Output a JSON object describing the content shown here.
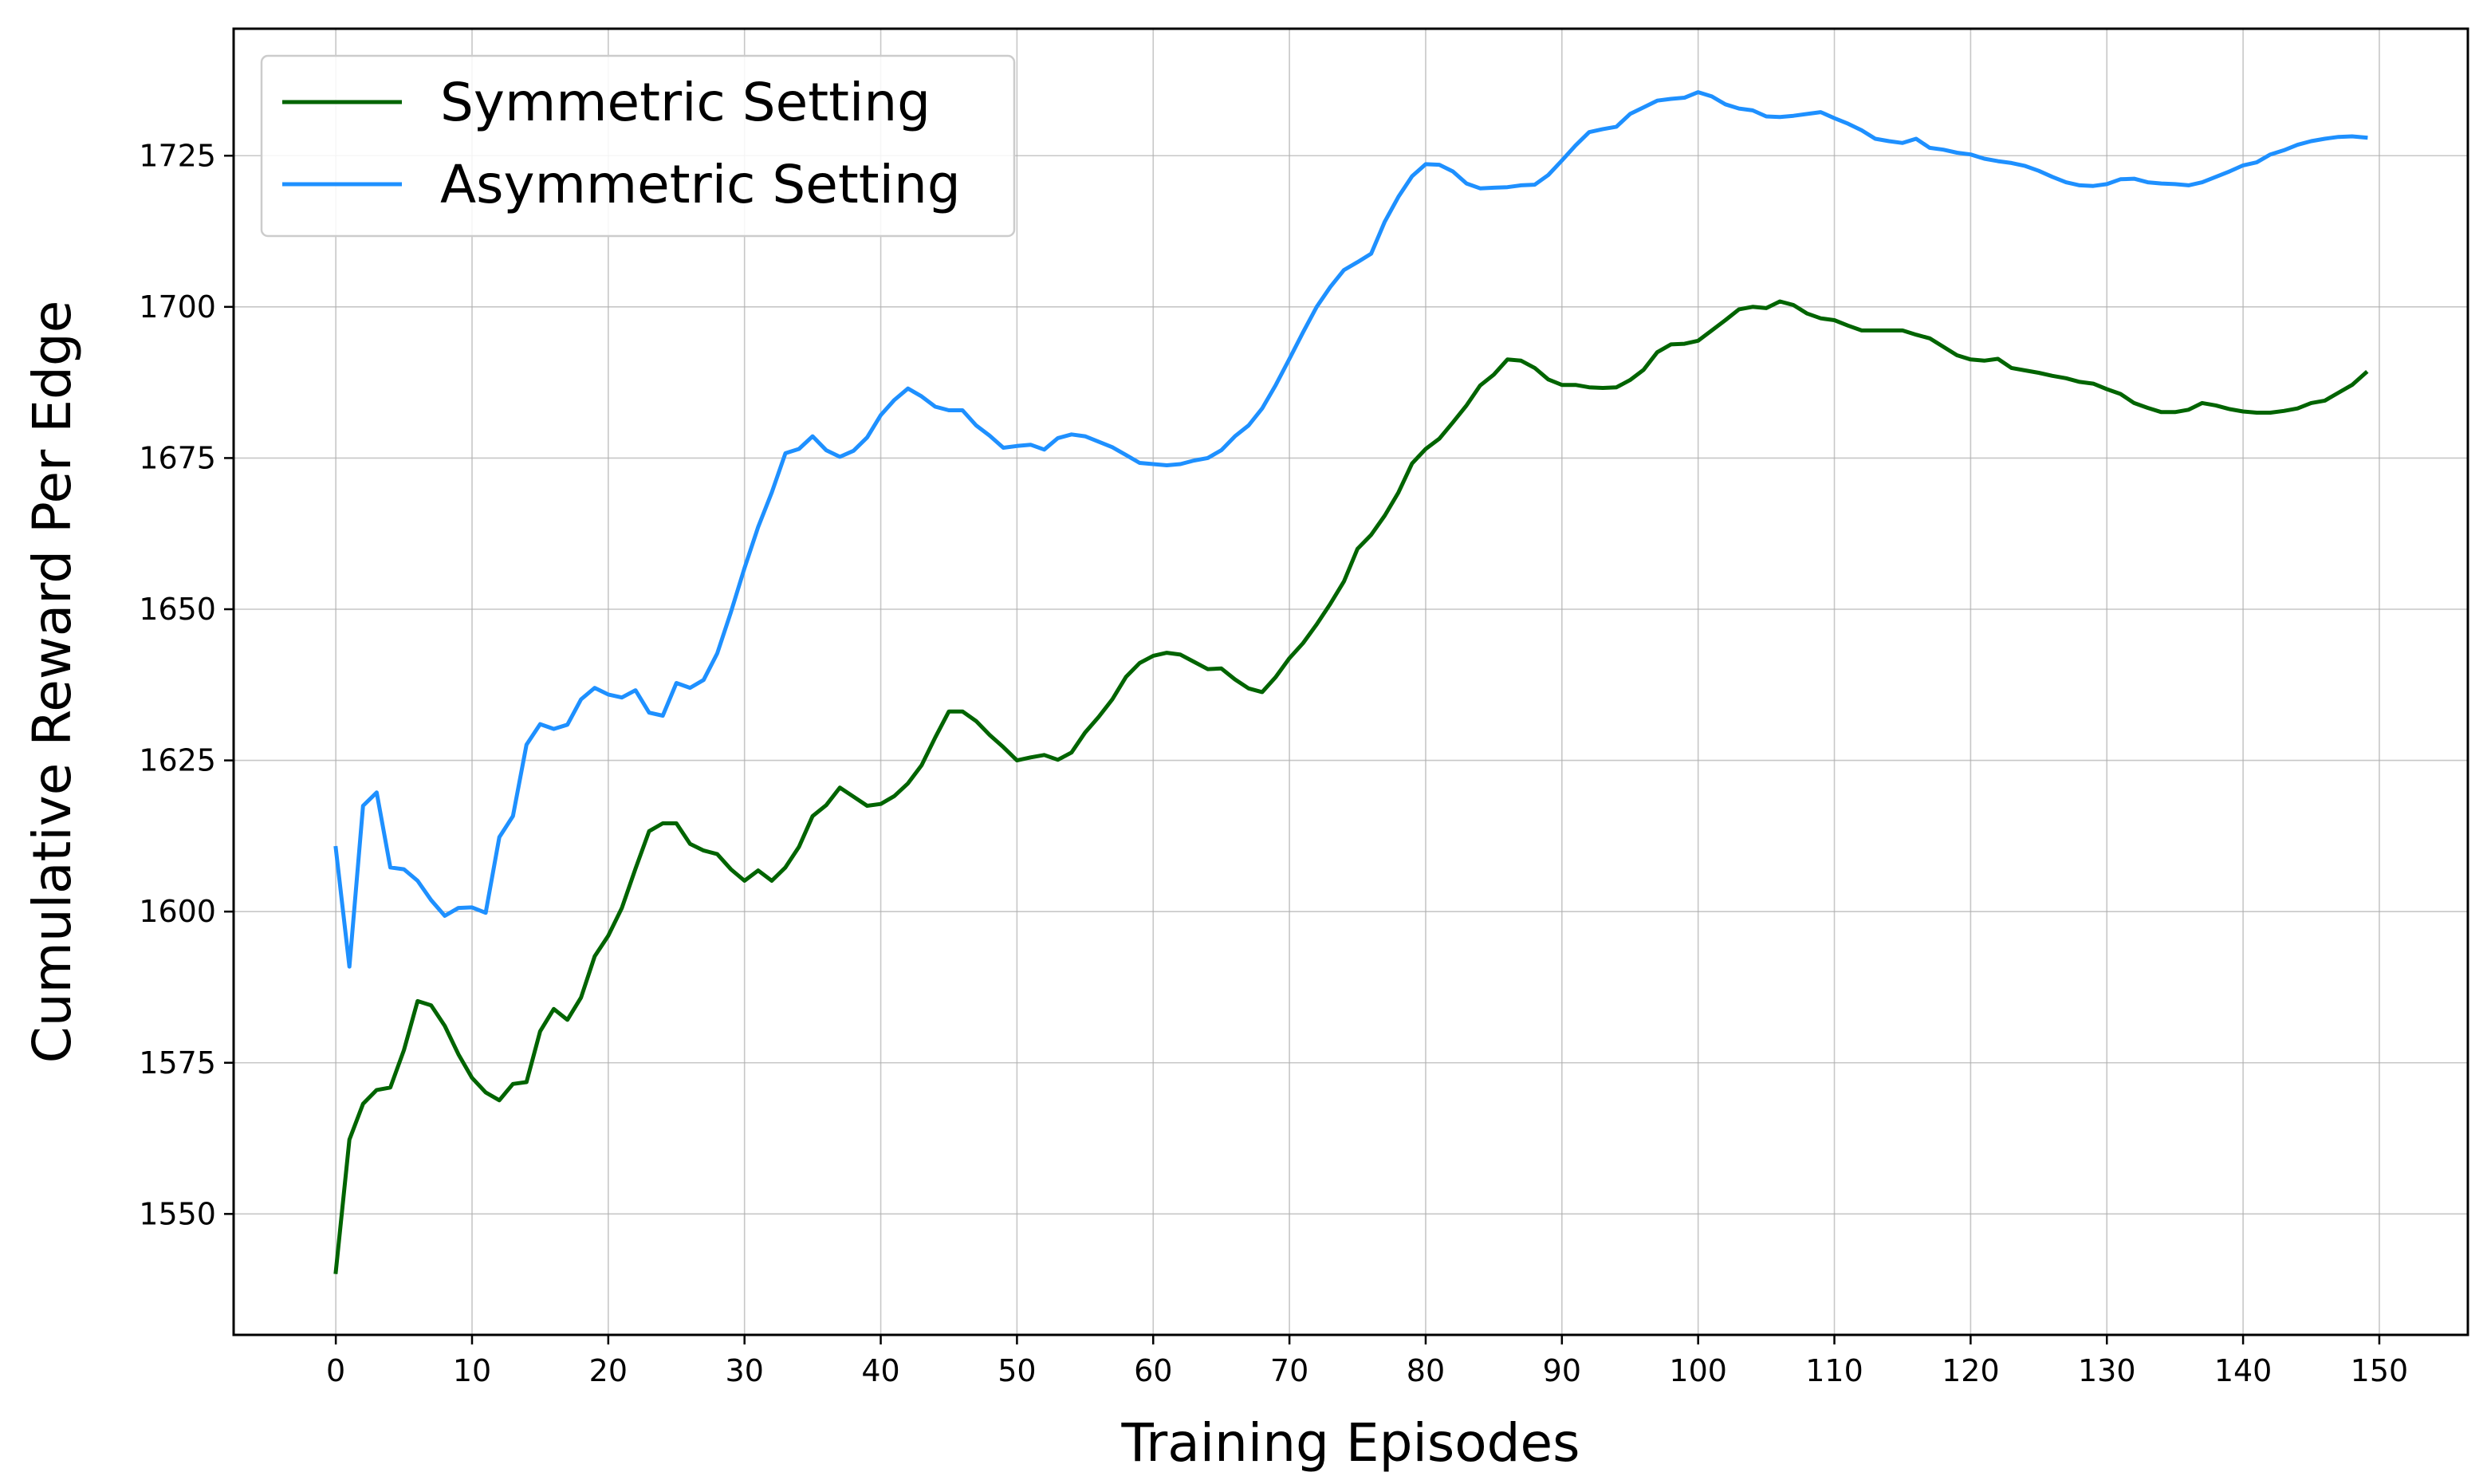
{
  "chart_data": {
    "type": "line",
    "xlabel": "Training Episodes",
    "ylabel": "Cumulative Reward Per Edge",
    "xlim": [
      -7.5,
      156.5
    ],
    "ylim": [
      1530,
      1746
    ],
    "x_ticks": [
      0,
      10,
      20,
      30,
      40,
      50,
      60,
      70,
      80,
      90,
      100,
      110,
      120,
      130,
      140,
      150
    ],
    "y_ticks": [
      1550,
      1575,
      1600,
      1625,
      1650,
      1675,
      1700,
      1725
    ],
    "grid": true,
    "legend_position": "top-left",
    "x": [
      0,
      1,
      2,
      3,
      4,
      5,
      6,
      7,
      8,
      9,
      10,
      11,
      12,
      13,
      14,
      15,
      16,
      17,
      18,
      19,
      20,
      21,
      22,
      23,
      24,
      25,
      26,
      27,
      28,
      29,
      30,
      31,
      32,
      33,
      34,
      35,
      36,
      37,
      38,
      39,
      40,
      41,
      42,
      43,
      44,
      45,
      46,
      47,
      48,
      49,
      50,
      51,
      52,
      53,
      54,
      55,
      56,
      57,
      58,
      59,
      60,
      61,
      62,
      63,
      64,
      65,
      66,
      67,
      68,
      69,
      70,
      71,
      72,
      73,
      74,
      75,
      76,
      77,
      78,
      79,
      80,
      81,
      82,
      83,
      84,
      85,
      86,
      87,
      88,
      89,
      90,
      91,
      92,
      93,
      94,
      95,
      96,
      97,
      98,
      99,
      100,
      101,
      102,
      103,
      104,
      105,
      106,
      107,
      108,
      109,
      110,
      111,
      112,
      113,
      114,
      115,
      116,
      117,
      118,
      119,
      120,
      121,
      122,
      123,
      124,
      125,
      126,
      127,
      128,
      129,
      130,
      131,
      132,
      133,
      134,
      135,
      136,
      137,
      138,
      139,
      140,
      141,
      142,
      143,
      144,
      145,
      146,
      147,
      148,
      149
    ],
    "series": [
      {
        "name": "Symmetric Setting",
        "color": "#006400",
        "values": [
          1540.4,
          1562.3,
          1568.2,
          1570.5,
          1570.9,
          1577.1,
          1585.2,
          1584.5,
          1581.1,
          1576.4,
          1572.5,
          1570.1,
          1568.8,
          1571.5,
          1571.8,
          1580.2,
          1583.9,
          1582.1,
          1585.8,
          1592.6,
          1596.0,
          1600.6,
          1607.1,
          1613.3,
          1614.6,
          1614.6,
          1611.2,
          1610.1,
          1609.5,
          1607.0,
          1605.1,
          1606.8,
          1605.1,
          1607.3,
          1610.7,
          1615.8,
          1617.6,
          1620.5,
          1619.0,
          1617.5,
          1617.8,
          1619.1,
          1621.2,
          1624.2,
          1628.8,
          1633.1,
          1633.1,
          1631.5,
          1629.2,
          1627.2,
          1625.0,
          1625.5,
          1625.9,
          1625.1,
          1626.3,
          1629.6,
          1632.2,
          1635.1,
          1638.8,
          1641.1,
          1642.3,
          1642.8,
          1642.5,
          1641.3,
          1640.1,
          1640.2,
          1638.4,
          1636.9,
          1636.3,
          1638.8,
          1641.9,
          1644.4,
          1647.5,
          1650.9,
          1654.6,
          1660.0,
          1662.3,
          1665.5,
          1669.3,
          1674.1,
          1676.5,
          1678.2,
          1680.9,
          1683.7,
          1687.0,
          1688.8,
          1691.3,
          1691.1,
          1689.9,
          1688.0,
          1687.1,
          1687.1,
          1686.7,
          1686.6,
          1686.7,
          1687.9,
          1689.6,
          1692.5,
          1693.8,
          1693.9,
          1694.4,
          1696.1,
          1697.8,
          1699.6,
          1700.0,
          1699.8,
          1700.9,
          1700.3,
          1698.9,
          1698.1,
          1697.8,
          1696.9,
          1696.1,
          1696.1,
          1696.1,
          1696.1,
          1695.4,
          1694.8,
          1693.4,
          1692.0,
          1691.3,
          1691.1,
          1691.4,
          1689.9,
          1689.5,
          1689.1,
          1688.6,
          1688.2,
          1687.6,
          1687.3,
          1686.4,
          1685.6,
          1684.1,
          1683.3,
          1682.6,
          1682.6,
          1683.0,
          1684.1,
          1683.7,
          1683.1,
          1682.7,
          1682.5,
          1682.5,
          1682.8,
          1683.2,
          1684.1,
          1684.5,
          1685.8,
          1687.1,
          1689.1
        ]
      },
      {
        "name": "Asymmetric Setting",
        "color": "#1e90ff",
        "values": [
          1610.5,
          1590.9,
          1617.5,
          1619.7,
          1607.3,
          1607.0,
          1605.1,
          1601.9,
          1599.3,
          1600.6,
          1600.7,
          1599.8,
          1612.3,
          1615.8,
          1627.6,
          1631.0,
          1630.2,
          1630.9,
          1635.1,
          1637.0,
          1635.9,
          1635.4,
          1636.6,
          1632.9,
          1632.4,
          1637.8,
          1637.0,
          1638.3,
          1642.7,
          1649.5,
          1656.8,
          1663.6,
          1669.3,
          1675.8,
          1676.5,
          1678.6,
          1676.3,
          1675.2,
          1676.2,
          1678.4,
          1682.1,
          1684.6,
          1686.5,
          1685.2,
          1683.5,
          1682.9,
          1682.9,
          1680.4,
          1678.7,
          1676.7,
          1677.0,
          1677.2,
          1676.4,
          1678.3,
          1678.9,
          1678.6,
          1677.7,
          1676.8,
          1675.5,
          1674.2,
          1674.0,
          1673.8,
          1674.0,
          1674.6,
          1675.0,
          1676.3,
          1678.6,
          1680.4,
          1683.2,
          1687.1,
          1691.4,
          1695.8,
          1700.0,
          1703.3,
          1706.1,
          1707.4,
          1708.8,
          1714.1,
          1718.2,
          1721.6,
          1723.6,
          1723.5,
          1722.4,
          1720.4,
          1719.6,
          1719.7,
          1719.8,
          1720.1,
          1720.2,
          1721.8,
          1724.2,
          1726.7,
          1728.9,
          1729.4,
          1729.8,
          1731.9,
          1733.0,
          1734.1,
          1734.4,
          1734.6,
          1735.5,
          1734.8,
          1733.5,
          1732.8,
          1732.5,
          1731.5,
          1731.4,
          1731.6,
          1731.9,
          1732.2,
          1731.2,
          1730.3,
          1729.2,
          1727.8,
          1727.4,
          1727.1,
          1727.8,
          1726.3,
          1726.0,
          1725.5,
          1725.2,
          1724.5,
          1724.1,
          1723.8,
          1723.3,
          1722.5,
          1721.5,
          1720.6,
          1720.1,
          1720.0,
          1720.3,
          1721.1,
          1721.2,
          1720.6,
          1720.4,
          1720.3,
          1720.1,
          1720.6,
          1721.5,
          1722.4,
          1723.4,
          1723.9,
          1725.2,
          1725.9,
          1726.8,
          1727.4,
          1727.8,
          1728.1,
          1728.2,
          1728.0
        ]
      }
    ]
  }
}
